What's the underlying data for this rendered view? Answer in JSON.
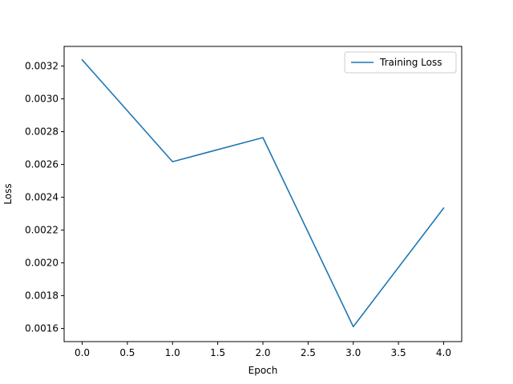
{
  "chart_data": {
    "type": "line",
    "title": "",
    "xlabel": "Epoch",
    "ylabel": "Loss",
    "xlim": [
      -0.2,
      4.2
    ],
    "ylim": [
      0.00152,
      0.00332
    ],
    "x_ticks": [
      0.0,
      0.5,
      1.0,
      1.5,
      2.0,
      2.5,
      3.0,
      3.5,
      4.0
    ],
    "x_tick_labels": [
      "0.0",
      "0.5",
      "1.0",
      "1.5",
      "2.0",
      "2.5",
      "3.0",
      "3.5",
      "4.0"
    ],
    "y_ticks": [
      0.0016,
      0.0018,
      0.002,
      0.0022,
      0.0024,
      0.0026,
      0.0028,
      0.003,
      0.0032
    ],
    "y_tick_labels": [
      "0.0016",
      "0.0018",
      "0.0020",
      "0.0022",
      "0.0024",
      "0.0026",
      "0.0028",
      "0.0030",
      "0.0032"
    ],
    "grid": false,
    "legend_position": "top-right",
    "series": [
      {
        "name": "Training Loss",
        "color": "#1f77b4",
        "x": [
          0,
          1,
          2,
          3,
          4
        ],
        "y": [
          0.003238,
          0.002617,
          0.002764,
          0.001611,
          0.002334
        ]
      }
    ]
  }
}
